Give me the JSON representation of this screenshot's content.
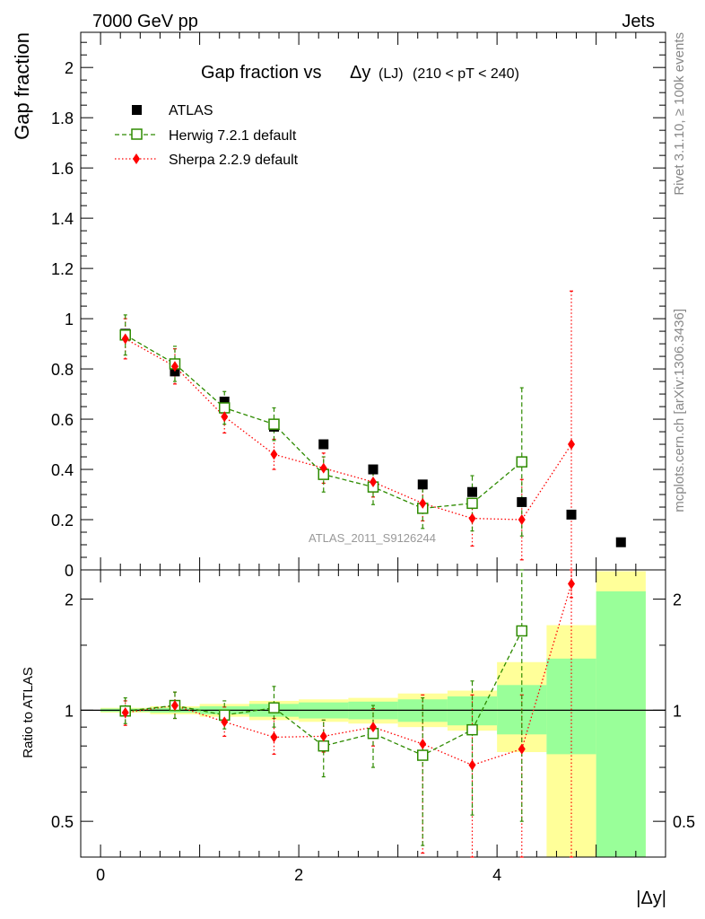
{
  "header": {
    "left": "7000 GeV pp",
    "right": "Jets"
  },
  "side_labels": {
    "rivet": "Rivet 3.1.10, ≥ 100k events",
    "mcplots": "mcplots.cern.ch [arXiv:1306.3436]"
  },
  "chart_data": [
    {
      "type": "scatter",
      "title": "Gap fraction vs",
      "title_symbol": "Δy",
      "title_suffix": "(LJ)",
      "title_range": "(210 < pT < 240)",
      "ylabel": "Gap fraction",
      "watermark": "ATLAS_2011_S9126244",
      "xlim": [
        -0.2,
        5.7
      ],
      "ylim": [
        0,
        2.14
      ],
      "xticks": [
        0,
        2,
        4
      ],
      "yticks": [
        0,
        0.2,
        0.4,
        0.6,
        0.8,
        1,
        1.2,
        1.4,
        1.6,
        1.8,
        2
      ],
      "ytick_labels": [
        "0",
        "0.2",
        "0.4",
        "0.6",
        "0.8",
        "1",
        "1.2",
        "1.4",
        "1.6",
        "1.8",
        "2"
      ],
      "legend": [
        "ATLAS",
        "Herwig 7.2.1 default",
        "Sherpa 2.2.9 default"
      ],
      "series": [
        {
          "name": "ATLAS",
          "color": "#000000",
          "x": [
            0.25,
            0.75,
            1.25,
            1.75,
            2.25,
            2.75,
            3.25,
            3.75,
            4.25,
            4.75,
            5.25
          ],
          "y": [
            0.94,
            0.79,
            0.67,
            0.57,
            0.5,
            0.4,
            0.34,
            0.31,
            0.27,
            0.22,
            0.11
          ]
        },
        {
          "name": "Herwig 7.2.1 default",
          "color": "#2e8b00",
          "x": [
            0.25,
            0.75,
            1.25,
            1.75,
            2.25,
            2.75,
            3.25,
            3.75,
            4.25
          ],
          "y": [
            0.935,
            0.82,
            0.645,
            0.58,
            0.38,
            0.33,
            0.245,
            0.265,
            0.43
          ],
          "err": [
            0.08,
            0.07,
            0.065,
            0.065,
            0.07,
            0.07,
            0.08,
            0.11,
            0.295
          ]
        },
        {
          "name": "Sherpa 2.2.9 default",
          "color": "#ff0000",
          "x": [
            0.25,
            0.75,
            1.25,
            1.75,
            2.25,
            2.75,
            3.25,
            3.75,
            4.25,
            4.75
          ],
          "y": [
            0.92,
            0.81,
            0.61,
            0.46,
            0.405,
            0.35,
            0.265,
            0.205,
            0.2,
            0.5
          ],
          "err": [
            0.08,
            0.07,
            0.065,
            0.06,
            0.06,
            0.06,
            0.07,
            0.11,
            0.16,
            0.61
          ]
        }
      ]
    },
    {
      "type": "scatter",
      "title": "",
      "xlabel": "|Δy|",
      "ylabel": "Ratio to ATLAS",
      "log_y": true,
      "xlim": [
        -0.2,
        5.7
      ],
      "ylim": [
        0.4,
        2.4
      ],
      "xticks": [
        0,
        2,
        4
      ],
      "xtick_labels": [
        "0",
        "2",
        "4"
      ],
      "yticks": [
        0.5,
        1,
        2
      ],
      "ytick_labels": [
        "0.5",
        "1",
        "2"
      ],
      "bands": {
        "edges": [
          0,
          0.5,
          1,
          1.5,
          2,
          2.5,
          3,
          3.5,
          4,
          4.5,
          5,
          5.5
        ],
        "outer_color": "#ffff99",
        "inner_color": "#99ff99",
        "outer": [
          [
            0.985,
            1.015
          ],
          [
            0.975,
            1.025
          ],
          [
            0.96,
            1.04
          ],
          [
            0.94,
            1.06
          ],
          [
            0.93,
            1.07
          ],
          [
            0.92,
            1.08
          ],
          [
            0.9,
            1.11
          ],
          [
            0.88,
            1.13
          ],
          [
            0.77,
            1.35
          ],
          [
            0.37,
            1.7
          ],
          [
            0.34,
            2.38
          ]
        ],
        "inner": [
          [
            0.99,
            1.01
          ],
          [
            0.985,
            1.015
          ],
          [
            0.975,
            1.025
          ],
          [
            0.96,
            1.04
          ],
          [
            0.95,
            1.05
          ],
          [
            0.945,
            1.055
          ],
          [
            0.93,
            1.07
          ],
          [
            0.91,
            1.09
          ],
          [
            0.86,
            1.17
          ],
          [
            0.76,
            1.38
          ],
          [
            0.34,
            2.1
          ]
        ]
      },
      "series": [
        {
          "name": "Herwig 7.2.1 default",
          "color": "#2e8b00",
          "x": [
            0.25,
            0.75,
            1.25,
            1.75,
            2.25,
            2.75,
            3.25,
            3.75,
            4.25
          ],
          "y": [
            0.995,
            1.03,
            0.97,
            1.015,
            0.8,
            0.865,
            0.755,
            0.885,
            1.64
          ],
          "lo": [
            0.92,
            0.95,
            0.89,
            0.9,
            0.66,
            0.7,
            0.43,
            0.52,
            0.5
          ],
          "hi": [
            1.08,
            1.12,
            1.06,
            1.16,
            0.94,
            1.03,
            1.08,
            1.2,
            2.4
          ]
        },
        {
          "name": "Sherpa 2.2.9 default",
          "color": "#ff0000",
          "x": [
            0.25,
            0.75,
            1.25,
            1.75,
            2.25,
            2.75,
            3.25,
            3.75,
            4.25,
            4.75
          ],
          "y": [
            0.985,
            1.03,
            0.93,
            0.845,
            0.85,
            0.9,
            0.81,
            0.71,
            0.785,
            2.2
          ],
          "lo": [
            0.91,
            0.95,
            0.85,
            0.76,
            0.77,
            0.8,
            0.41,
            0.4,
            0.4,
            0.4
          ],
          "hi": [
            1.06,
            1.12,
            1.02,
            0.95,
            0.94,
            1.01,
            1.1,
            1.1,
            1.1,
            2.4
          ]
        }
      ]
    }
  ]
}
